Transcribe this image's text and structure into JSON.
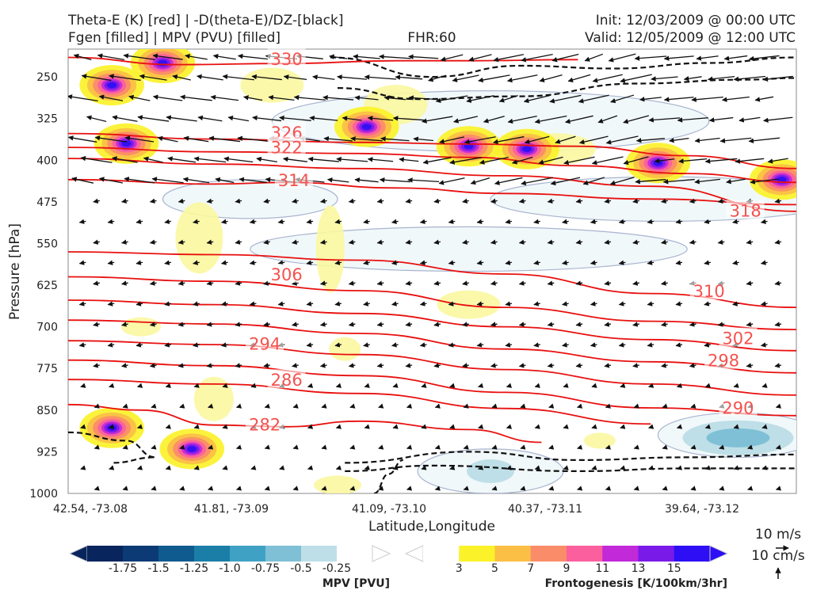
{
  "header": {
    "title_line1": "Theta-E (K) [red] | -D(theta-E)/DZ-[black]",
    "title_line2": "Fgen [filled] | MPV (PVU) [filled]",
    "fhr": "FHR:60",
    "init": "Init: 12/03/2009 @ 00:00 UTC",
    "valid": "Valid: 12/05/2009 @ 12:00 UTC"
  },
  "chart_data": {
    "type": "cross-section",
    "xlabel": "Latitude,Longitude",
    "ylabel": "Pressure [hPa]",
    "ylim": [
      1000,
      200
    ],
    "y_ticks": [
      250,
      325,
      400,
      475,
      550,
      625,
      700,
      775,
      850,
      925,
      1000
    ],
    "x_ticks": [
      "42.54, -73.08",
      "41.81, -73.09",
      "41.09, -73.10",
      "40.37, -73.11",
      "39.64, -73.12"
    ],
    "theta_e_contours": [
      {
        "label": "330",
        "points": [
          [
            0.0,
            215
          ],
          [
            0.15,
            228
          ],
          [
            0.3,
            226
          ],
          [
            0.45,
            221
          ],
          [
            0.55,
            221
          ],
          [
            0.7,
            219
          ]
        ]
      },
      {
        "label": "326",
        "points": [
          [
            0.0,
            352
          ],
          [
            0.2,
            362
          ],
          [
            0.4,
            368
          ],
          [
            0.55,
            371
          ],
          [
            0.7,
            375
          ],
          [
            0.85,
            392
          ],
          [
            1.0,
            415
          ]
        ]
      },
      {
        "label": "322",
        "points": [
          [
            0.0,
            377
          ],
          [
            0.2,
            385
          ],
          [
            0.4,
            388
          ],
          [
            0.55,
            395
          ],
          [
            0.7,
            410
          ],
          [
            0.85,
            424
          ],
          [
            1.0,
            440
          ]
        ]
      },
      {
        "label": "318",
        "points": [
          [
            0.0,
            397
          ],
          [
            0.2,
            407
          ],
          [
            0.4,
            415
          ],
          [
            0.6,
            428
          ],
          [
            0.8,
            447
          ],
          [
            1.0,
            492
          ]
        ]
      },
      {
        "label": "314",
        "points": [
          [
            0.0,
            435
          ],
          [
            0.2,
            443
          ],
          [
            0.3,
            440
          ],
          [
            0.45,
            450
          ],
          [
            0.6,
            460
          ],
          [
            0.8,
            470
          ],
          [
            1.0,
            480
          ]
        ]
      },
      {
        "label": "310",
        "points": [
          [
            0.0,
            565
          ],
          [
            0.2,
            570
          ],
          [
            0.4,
            580
          ],
          [
            0.6,
            605
          ],
          [
            0.8,
            640
          ],
          [
            1.0,
            665
          ]
        ]
      },
      {
        "label": "306",
        "points": [
          [
            0.0,
            610
          ],
          [
            0.2,
            618
          ],
          [
            0.4,
            635
          ],
          [
            0.6,
            665
          ],
          [
            0.8,
            690
          ],
          [
            1.0,
            705
          ]
        ]
      },
      {
        "label": "302",
        "points": [
          [
            0.0,
            652
          ],
          [
            0.2,
            660
          ],
          [
            0.4,
            676
          ],
          [
            0.6,
            700
          ],
          [
            0.8,
            723
          ],
          [
            1.0,
            743
          ]
        ]
      },
      {
        "label": "298",
        "points": [
          [
            0.0,
            688
          ],
          [
            0.2,
            695
          ],
          [
            0.4,
            712
          ],
          [
            0.6,
            740
          ],
          [
            0.8,
            763
          ],
          [
            1.0,
            783
          ]
        ]
      },
      {
        "label": "294",
        "points": [
          [
            0.0,
            725
          ],
          [
            0.2,
            732
          ],
          [
            0.4,
            750
          ],
          [
            0.6,
            777
          ],
          [
            0.8,
            803
          ],
          [
            1.0,
            823
          ]
        ]
      },
      {
        "label": "290",
        "points": [
          [
            0.0,
            760
          ],
          [
            0.2,
            770
          ],
          [
            0.4,
            788
          ],
          [
            0.6,
            818
          ],
          [
            0.8,
            846
          ],
          [
            1.0,
            860
          ]
        ]
      },
      {
        "label": "286",
        "points": [
          [
            0.0,
            795
          ],
          [
            0.2,
            803
          ],
          [
            0.4,
            820
          ],
          [
            0.6,
            847
          ],
          [
            0.8,
            875
          ]
        ]
      },
      {
        "label": "282",
        "points": [
          [
            0.0,
            840
          ],
          [
            0.1,
            850
          ],
          [
            0.2,
            877
          ],
          [
            0.3,
            880
          ],
          [
            0.4,
            870
          ],
          [
            0.55,
            885
          ],
          [
            0.65,
            908
          ]
        ]
      }
    ],
    "fgen_colorbar": {
      "label": "Frontogenesis [K/100km/3hr]",
      "ticks": [
        "3",
        "5",
        "7",
        "9",
        "11",
        "13",
        "15"
      ],
      "colors": [
        "#fbf22a",
        "#fbbf46",
        "#fb8c6a",
        "#fb5f9e",
        "#c129d9",
        "#7a1ae8",
        "#2d0ef5"
      ]
    },
    "mpv_colorbar": {
      "label": "MPV [PVU]",
      "ticks": [
        "-1.75",
        "-1.5",
        "-1.25",
        "-1.0",
        "-0.75",
        "-0.5",
        "-0.25"
      ],
      "colors": [
        "#08255d",
        "#0c3a75",
        "#0f5a8f",
        "#1b7ea7",
        "#3fa2c4",
        "#7fc0d6",
        "#bfdfe8",
        "#ffffff"
      ]
    },
    "fgen_maxima": [
      {
        "x": 0.13,
        "p": 225,
        "value": 15
      },
      {
        "x": 0.06,
        "p": 265,
        "value": 15
      },
      {
        "x": 0.08,
        "p": 370,
        "value": 13
      },
      {
        "x": 0.41,
        "p": 340,
        "value": 11
      },
      {
        "x": 0.55,
        "p": 375,
        "value": 15
      },
      {
        "x": 0.63,
        "p": 380,
        "value": 15
      },
      {
        "x": 0.81,
        "p": 405,
        "value": 15
      },
      {
        "x": 0.98,
        "p": 435,
        "value": 15
      },
      {
        "x": 0.06,
        "p": 882,
        "value": 15
      },
      {
        "x": 0.17,
        "p": 920,
        "value": 15
      }
    ]
  },
  "wind_key": {
    "horizontal": "10 m/s",
    "vertical": "10 cm/s"
  }
}
